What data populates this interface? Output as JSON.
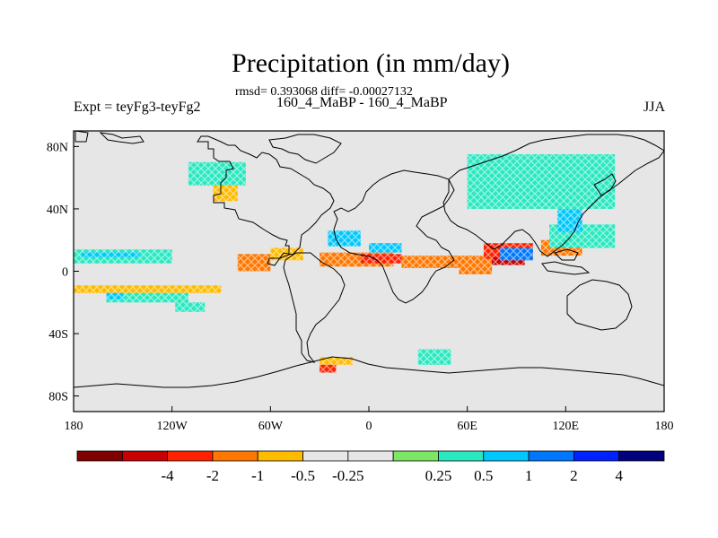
{
  "title": "Precipitation (in mm/day)",
  "subtitle": "rmsd= 0.393068 diff= -0.00027132",
  "left_title": "Expt = teyFg3-teyFg2",
  "center_title": "160_4_MaBP - 160_4_MaBP",
  "right_title": "JJA",
  "map": {
    "lon_range": [
      -180,
      180
    ],
    "lat_range": [
      -90,
      90
    ],
    "background_color": "#e6e6e6",
    "lon_ticks": [
      {
        "value": -180,
        "label": "180"
      },
      {
        "value": -120,
        "label": "120W"
      },
      {
        "value": -60,
        "label": "60W"
      },
      {
        "value": 0,
        "label": "0"
      },
      {
        "value": 60,
        "label": "60E"
      },
      {
        "value": 120,
        "label": "120E"
      },
      {
        "value": 180,
        "label": "180"
      }
    ],
    "lat_ticks": [
      {
        "value": 80,
        "label": "80N"
      },
      {
        "value": 40,
        "label": "40N"
      },
      {
        "value": 0,
        "label": "0"
      },
      {
        "value": -40,
        "label": "40S"
      },
      {
        "value": -80,
        "label": "80S"
      }
    ]
  },
  "colorbar": {
    "colors": [
      "#800000",
      "#c80000",
      "#ff2200",
      "#ff7700",
      "#ffbb00",
      "#e6e6e6",
      "#e6e6e6",
      "#7de665",
      "#2ae8c0",
      "#00c8ff",
      "#0077ff",
      "#0022ff",
      "#00007d"
    ],
    "labels": [
      "-4",
      "-2",
      "-1",
      "-0.5",
      "-0.25",
      "0.25",
      "0.5",
      "1",
      "2",
      "4"
    ]
  },
  "chart_data": {
    "type": "heatmap",
    "variable": "Precipitation difference",
    "units": "mm/day",
    "season": "JJA",
    "levels": [
      -4,
      -2,
      -1,
      -0.5,
      -0.25,
      0.25,
      0.5,
      1,
      2,
      4
    ],
    "rmsd": 0.393068,
    "diff": -0.00027132,
    "regions": [
      {
        "lon": [
          -180,
          -120
        ],
        "lat": [
          5,
          14
        ],
        "value": 0.5
      },
      {
        "lon": [
          -175,
          -140
        ],
        "lat": [
          9,
          12
        ],
        "value": 1
      },
      {
        "lon": [
          -180,
          -90
        ],
        "lat": [
          -14,
          -9
        ],
        "value": -0.3
      },
      {
        "lon": [
          -160,
          -110
        ],
        "lat": [
          -20,
          -14
        ],
        "value": 0.5
      },
      {
        "lon": [
          -118,
          -100
        ],
        "lat": [
          -26,
          -20
        ],
        "value": 0.5
      },
      {
        "lon": [
          -160,
          -150
        ],
        "lat": [
          -18,
          -14
        ],
        "value": 1
      },
      {
        "lon": [
          -80,
          -60
        ],
        "lat": [
          0,
          11
        ],
        "value": -1
      },
      {
        "lon": [
          -60,
          -40
        ],
        "lat": [
          7,
          15
        ],
        "value": -0.5
      },
      {
        "lon": [
          -30,
          15
        ],
        "lat": [
          3,
          12
        ],
        "value": -1
      },
      {
        "lon": [
          -5,
          20
        ],
        "lat": [
          5,
          11
        ],
        "value": -2
      },
      {
        "lon": [
          -25,
          -5
        ],
        "lat": [
          16,
          26
        ],
        "value": 1
      },
      {
        "lon": [
          0,
          20
        ],
        "lat": [
          12,
          18
        ],
        "value": 1
      },
      {
        "lon": [
          20,
          55
        ],
        "lat": [
          2,
          10
        ],
        "value": -1
      },
      {
        "lon": [
          55,
          75
        ],
        "lat": [
          -2,
          10
        ],
        "value": -1
      },
      {
        "lon": [
          70,
          100
        ],
        "lat": [
          8,
          18
        ],
        "value": -2
      },
      {
        "lon": [
          75,
          95
        ],
        "lat": [
          4,
          9
        ],
        "value": -4
      },
      {
        "lon": [
          80,
          100
        ],
        "lat": [
          7,
          15
        ],
        "value": 2
      },
      {
        "lon": [
          105,
          130
        ],
        "lat": [
          10,
          20
        ],
        "value": -1
      },
      {
        "lon": [
          110,
          150
        ],
        "lat": [
          15,
          30
        ],
        "value": 0.5
      },
      {
        "lon": [
          115,
          130
        ],
        "lat": [
          25,
          40
        ],
        "value": 1
      },
      {
        "lon": [
          60,
          150
        ],
        "lat": [
          40,
          75
        ],
        "value": 0.5
      },
      {
        "lon": [
          -110,
          -75
        ],
        "lat": [
          55,
          70
        ],
        "value": 0.5
      },
      {
        "lon": [
          -95,
          -80
        ],
        "lat": [
          45,
          55
        ],
        "value": -0.5
      },
      {
        "lon": [
          -30,
          -10
        ],
        "lat": [
          -60,
          -55
        ],
        "value": -0.5
      },
      {
        "lon": [
          -30,
          -20
        ],
        "lat": [
          -65,
          -60
        ],
        "value": -2
      },
      {
        "lon": [
          30,
          50
        ],
        "lat": [
          -60,
          -50
        ],
        "value": 0.5
      }
    ]
  }
}
